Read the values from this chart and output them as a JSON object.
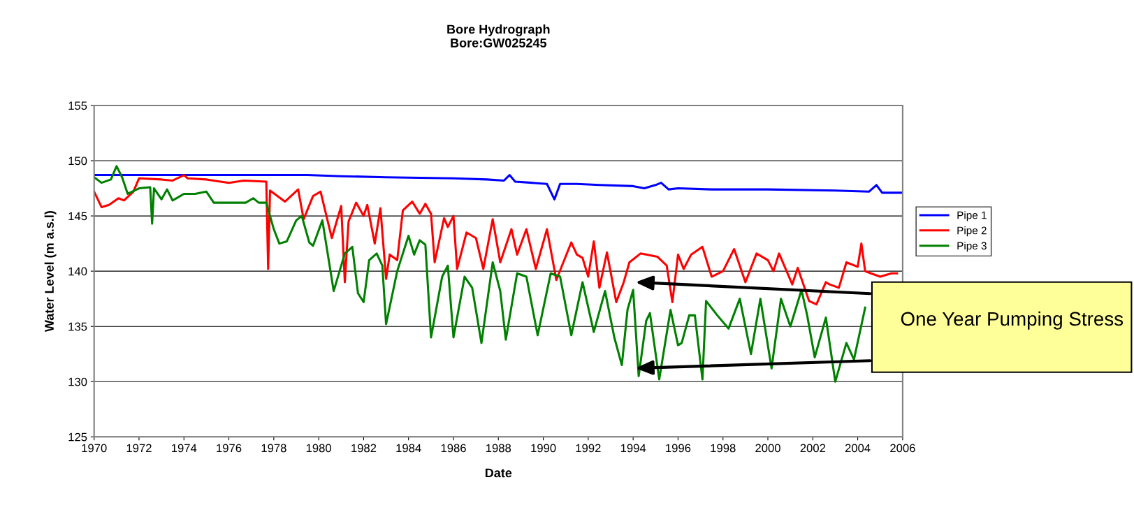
{
  "chart_data": {
    "type": "line",
    "title": "Bore Hydrograph",
    "subtitle": "Bore:GW025245",
    "xlabel": "Date",
    "ylabel": "Water Level (m a.s.l)",
    "xlim": [
      "1970",
      "2006"
    ],
    "xticks": [
      "1970",
      "1972",
      "1974",
      "1976",
      "1978",
      "1980",
      "1982",
      "1984",
      "1986",
      "1988",
      "1990",
      "1992",
      "1994",
      "1996",
      "1998",
      "2000",
      "2002",
      "2004",
      "2006"
    ],
    "ylim": [
      125,
      155
    ],
    "yticks": [
      125,
      130,
      135,
      140,
      145,
      150,
      155
    ],
    "grid": "y",
    "legend": "right",
    "marker": "none",
    "line_style": "solid",
    "series": [
      {
        "name": "Pipe 1",
        "color": "#0000ff",
        "x": [
          "1970-01",
          "1978-01",
          "1979-07",
          "1981-01",
          "1983-01",
          "1986-01",
          "1987-07",
          "1988-04",
          "1988-07",
          "1988-10",
          "1989-07",
          "1990-03",
          "1990-07",
          "1990-10",
          "1991-07",
          "1992-07",
          "1994-01",
          "1994-07",
          "1995-01",
          "1995-04",
          "1995-08",
          "1996-01",
          "1997-07",
          "2000-01",
          "2003-01",
          "2004-07",
          "2004-11",
          "2005-02",
          "2006-01"
        ],
        "values": [
          148.7,
          148.7,
          148.7,
          148.6,
          148.5,
          148.4,
          148.3,
          148.2,
          148.7,
          148.1,
          148.0,
          147.9,
          146.5,
          147.9,
          147.9,
          147.8,
          147.7,
          147.5,
          147.8,
          148.0,
          147.4,
          147.5,
          147.4,
          147.4,
          147.3,
          147.2,
          147.8,
          147.1,
          147.1
        ]
      },
      {
        "name": "Pipe 2",
        "color": "#ff0000",
        "x": [
          "1970-01",
          "1970-05",
          "1970-09",
          "1971-02",
          "1971-05",
          "1971-10",
          "1972-01",
          "1973-01",
          "1973-07",
          "1974-01",
          "1974-03",
          "1975-01",
          "1976-01",
          "1976-09",
          "1977-09",
          "1977-10",
          "1977-11",
          "1978-07",
          "1979-02",
          "1979-05",
          "1979-10",
          "1980-02",
          "1980-08",
          "1981-01",
          "1981-03",
          "1981-05",
          "1981-09",
          "1982-01",
          "1982-03",
          "1982-07",
          "1982-10",
          "1983-01",
          "1983-03",
          "1983-07",
          "1983-10",
          "1984-03",
          "1984-07",
          "1984-10",
          "1985-01",
          "1985-03",
          "1985-08",
          "1985-10",
          "1986-01",
          "1986-03",
          "1986-08",
          "1987-01",
          "1987-05",
          "1987-10",
          "1988-02",
          "1988-08",
          "1988-11",
          "1989-04",
          "1989-09",
          "1990-03",
          "1990-08",
          "1990-11",
          "1991-04",
          "1991-07",
          "1991-10",
          "1992-01",
          "1992-04",
          "1992-07",
          "1992-11",
          "1993-04",
          "1993-08",
          "1993-11",
          "1994-05",
          "1995-02",
          "1995-07",
          "1995-10",
          "1996-01",
          "1996-04",
          "1996-08",
          "1997-02",
          "1997-07",
          "1998-01",
          "1998-07",
          "1999-01",
          "1999-07",
          "2000-01",
          "2000-04",
          "2000-07",
          "2001-02",
          "2001-05",
          "2001-11",
          "2002-03",
          "2002-08",
          "2002-10",
          "2003-03",
          "2003-07",
          "2004-01",
          "2004-03",
          "2004-05",
          "2004-08",
          "2005-01",
          "2005-07",
          "2005-10"
        ],
        "values": [
          147.2,
          145.8,
          146.0,
          146.6,
          146.4,
          147.2,
          148.4,
          148.3,
          148.2,
          148.7,
          148.4,
          148.3,
          148.0,
          148.2,
          148.1,
          140.2,
          147.3,
          146.3,
          147.4,
          144.7,
          146.8,
          147.2,
          143.0,
          145.9,
          139.0,
          144.5,
          146.2,
          145.0,
          146.0,
          142.5,
          145.7,
          139.3,
          141.5,
          141.0,
          145.5,
          146.3,
          145.2,
          146.1,
          145.2,
          140.8,
          144.8,
          144.0,
          145.0,
          140.2,
          143.5,
          143.0,
          140.2,
          144.7,
          140.8,
          143.8,
          141.5,
          143.8,
          140.2,
          143.8,
          139.2,
          140.5,
          142.6,
          141.5,
          141.2,
          139.5,
          142.7,
          138.5,
          141.7,
          137.2,
          139.0,
          140.8,
          141.6,
          141.3,
          140.5,
          137.2,
          141.5,
          140.2,
          141.5,
          142.2,
          139.5,
          140.0,
          142.0,
          139.0,
          141.6,
          141.0,
          140.0,
          141.6,
          138.8,
          140.3,
          137.3,
          137.0,
          139.0,
          138.8,
          138.5,
          140.8,
          140.4,
          142.5,
          140.0,
          139.8,
          139.5,
          139.8,
          139.8
        ]
      },
      {
        "name": "Pipe 3",
        "color": "#008000",
        "x": [
          "1970-01",
          "1970-05",
          "1970-10",
          "1971-01",
          "1971-04",
          "1971-07",
          "1972-01",
          "1972-07",
          "1972-08",
          "1972-09",
          "1973-01",
          "1973-04",
          "1973-07",
          "1974-01",
          "1974-07",
          "1975-01",
          "1975-05",
          "1976-10",
          "1977-02",
          "1977-05",
          "1977-09",
          "1978-01",
          "1978-04",
          "1978-08",
          "1979-01",
          "1979-04",
          "1979-08",
          "1979-10",
          "1980-03",
          "1980-09",
          "1981-03",
          "1981-07",
          "1981-10",
          "1982-01",
          "1982-04",
          "1982-08",
          "1982-11",
          "1983-01",
          "1983-07",
          "1984-01",
          "1984-04",
          "1984-07",
          "1984-10",
          "1985-01",
          "1985-07",
          "1985-10",
          "1986-01",
          "1986-07",
          "1986-11",
          "1987-04",
          "1987-10",
          "1988-02",
          "1988-05",
          "1988-11",
          "1989-04",
          "1989-10",
          "1990-05",
          "1990-10",
          "1991-04",
          "1991-10",
          "1992-04",
          "1992-10",
          "1993-03",
          "1993-07",
          "1993-10",
          "1994-01",
          "1994-04",
          "1994-08",
          "1994-10",
          "1995-03",
          "1995-09",
          "1996-01",
          "1996-03",
          "1996-07",
          "1996-10",
          "1997-02",
          "1997-04",
          "1997-10",
          "1998-04",
          "1998-10",
          "1999-04",
          "1999-09",
          "2000-03",
          "2000-08",
          "2001-01",
          "2001-07",
          "2001-10",
          "2002-02",
          "2002-08",
          "2003-01",
          "2003-07",
          "2003-11",
          "2004-05"
        ],
        "values": [
          148.5,
          148.0,
          148.3,
          149.5,
          148.5,
          147.0,
          147.5,
          147.6,
          144.3,
          147.5,
          146.5,
          147.4,
          146.4,
          147.0,
          147.0,
          147.2,
          146.2,
          146.2,
          146.6,
          146.2,
          146.2,
          143.8,
          142.5,
          142.7,
          144.6,
          145.0,
          142.6,
          142.3,
          144.6,
          138.2,
          141.6,
          142.2,
          138.0,
          137.2,
          141.0,
          141.6,
          140.5,
          135.2,
          140.0,
          143.2,
          141.5,
          142.8,
          142.4,
          134.0,
          139.5,
          140.5,
          134.0,
          139.5,
          138.5,
          133.5,
          140.8,
          138.2,
          133.8,
          139.8,
          139.5,
          134.2,
          139.8,
          139.5,
          134.2,
          139.0,
          134.5,
          138.2,
          134.0,
          131.5,
          136.5,
          138.3,
          130.5,
          135.5,
          136.2,
          130.2,
          136.5,
          133.3,
          133.5,
          136.0,
          136.0,
          130.2,
          137.3,
          136.0,
          134.8,
          137.5,
          132.5,
          137.5,
          131.2,
          137.5,
          135.0,
          138.3,
          136.0,
          132.2,
          135.8,
          130.0,
          133.5,
          132.0,
          136.7
        ]
      }
    ],
    "annotations": [
      "One Year Pumping Stress"
    ]
  }
}
